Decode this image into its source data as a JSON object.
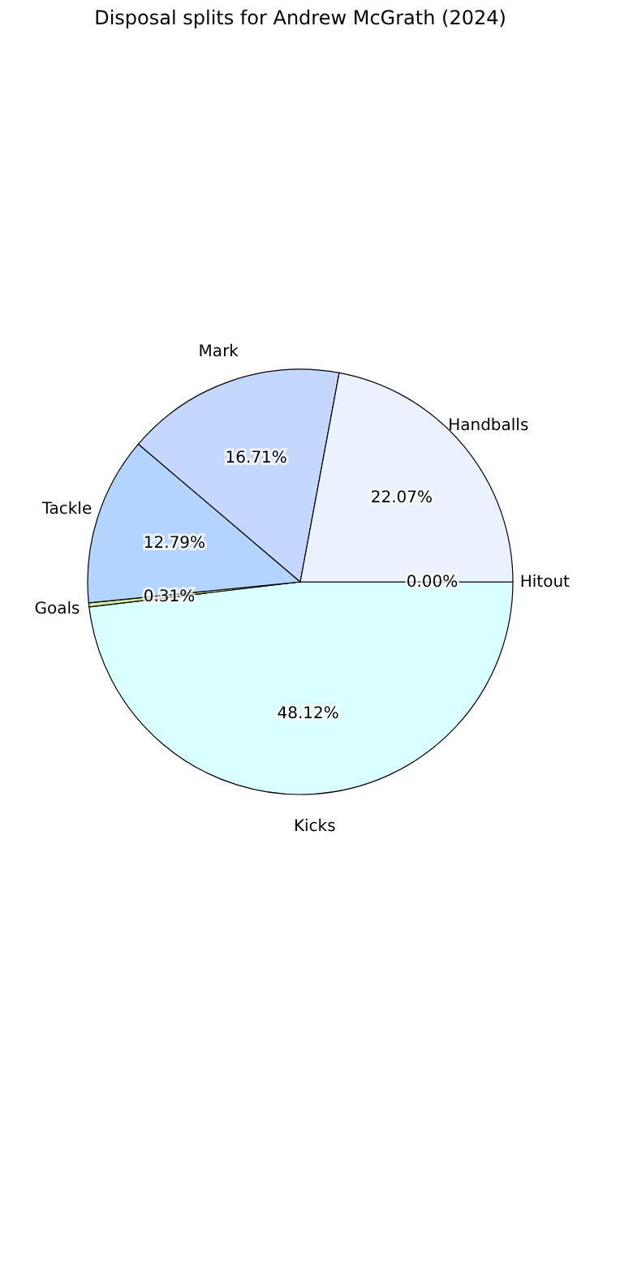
{
  "chart_data": {
    "type": "pie",
    "title": "Disposal splits for Andrew McGrath (2024)",
    "categories": [
      "Hitout",
      "Kicks",
      "Goals",
      "Tackle",
      "Mark",
      "Handballs"
    ],
    "values": [
      0.0,
      48.12,
      0.31,
      12.79,
      16.71,
      22.07
    ],
    "value_labels": [
      "0.00%",
      "48.12%",
      "0.31%",
      "12.79%",
      "16.71%",
      "22.07%"
    ],
    "colors": [
      "#9a9a9a",
      "#d9ffff",
      "#d4ec9c",
      "#b3d4ff",
      "#c4d8ff",
      "#eaf1ff"
    ],
    "legend": false
  }
}
